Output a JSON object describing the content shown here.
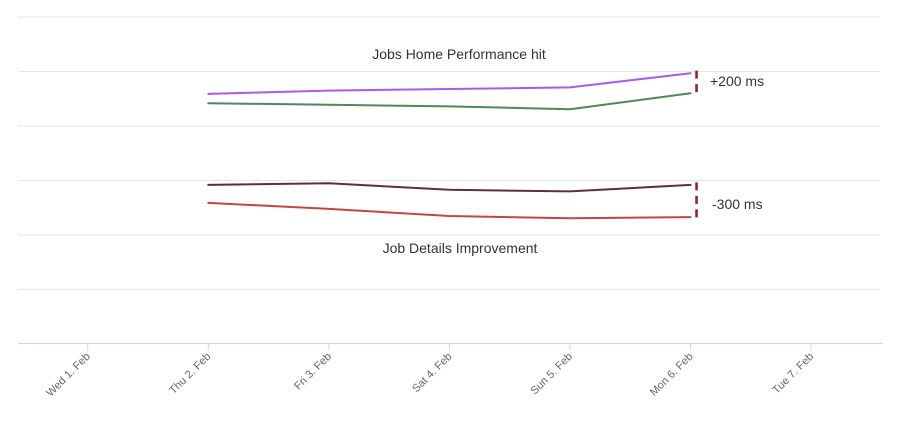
{
  "chart_data": {
    "type": "line",
    "x_axis": {
      "categories": [
        "Wed 1. Feb",
        "Thu 2. Feb",
        "Fri 3. Feb",
        "Sat 4. Feb",
        "Sun 5. Feb",
        "Mon 6. Feb",
        "Tue 7. Feb"
      ],
      "label_rotation_deg": -45
    },
    "y_axis": {
      "tick_labels_visible": false,
      "unit_hint": "ms",
      "values_estimated": true,
      "gridline_count": 6
    },
    "sections": [
      {
        "title": "Jobs Home Performance hit"
      },
      {
        "title": "Job Details Improvement"
      }
    ],
    "series": [
      {
        "name": "purple-line",
        "color": "#a958f2",
        "start_category": "Thu 2. Feb",
        "start_index": 1,
        "values_ms": [
          2290,
          2320,
          2335,
          2350,
          2480
        ]
      },
      {
        "name": "green-line",
        "color": "#4c8a56",
        "start_category": "Thu 2. Feb",
        "start_index": 1,
        "values_ms": [
          2205,
          2190,
          2175,
          2150,
          2295
        ]
      },
      {
        "name": "dark-red-line",
        "color": "#5e3131",
        "start_category": "Thu 2. Feb",
        "start_index": 1,
        "values_ms": [
          1455,
          1470,
          1410,
          1395,
          1455
        ]
      },
      {
        "name": "red-line",
        "color": "#cb4242",
        "start_category": "Thu 2. Feb",
        "start_index": 1,
        "values_ms": [
          1290,
          1235,
          1170,
          1150,
          1160
        ]
      }
    ],
    "annotations": [
      {
        "label": "+200 ms",
        "at_category": "Mon 6. Feb",
        "between": [
          "purple-line",
          "green-line"
        ],
        "marker_color": "#8b2240"
      },
      {
        "label": "-300 ms",
        "at_category": "Mon 6. Feb",
        "between": [
          "dark-red-line",
          "red-line"
        ],
        "marker_color": "#8b2240"
      }
    ],
    "colors": {
      "gridline": "#e6e6e6",
      "axis": "#ccd6eb",
      "axis_label": "#666666",
      "text": "#333333",
      "background": "#ffffff"
    }
  }
}
